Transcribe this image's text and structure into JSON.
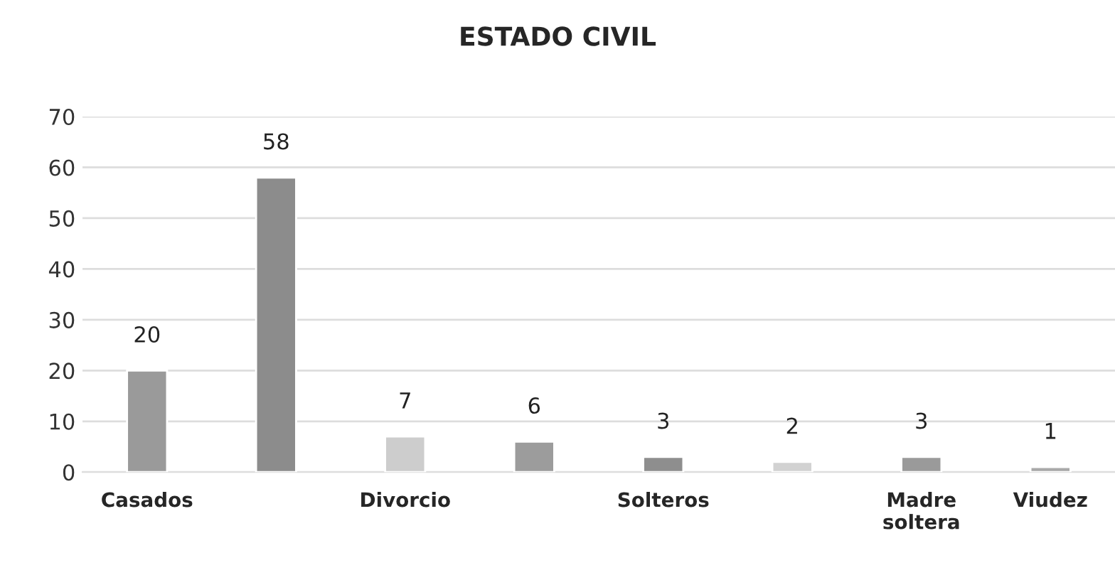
{
  "chart_data": {
    "type": "bar",
    "title": "ESTADO CIVIL",
    "categories": [
      "Casados",
      null,
      "Divorcio",
      null,
      "Solteros",
      null,
      "Madre\nsoltera",
      "Viudez"
    ],
    "values": [
      20,
      58,
      7,
      6,
      3,
      2,
      3,
      1
    ],
    "colors": [
      "#9a9a9a",
      "#8c8c8c",
      "#cdcdcd",
      "#9c9c9c",
      "#8e8e8e",
      "#d2d2d2",
      "#9a9a9a",
      "#a8a8a8"
    ],
    "ylim": [
      0,
      70
    ],
    "yticks": [
      0,
      10,
      20,
      30,
      40,
      50,
      60,
      70
    ],
    "grid": "y",
    "data_labels": true
  }
}
